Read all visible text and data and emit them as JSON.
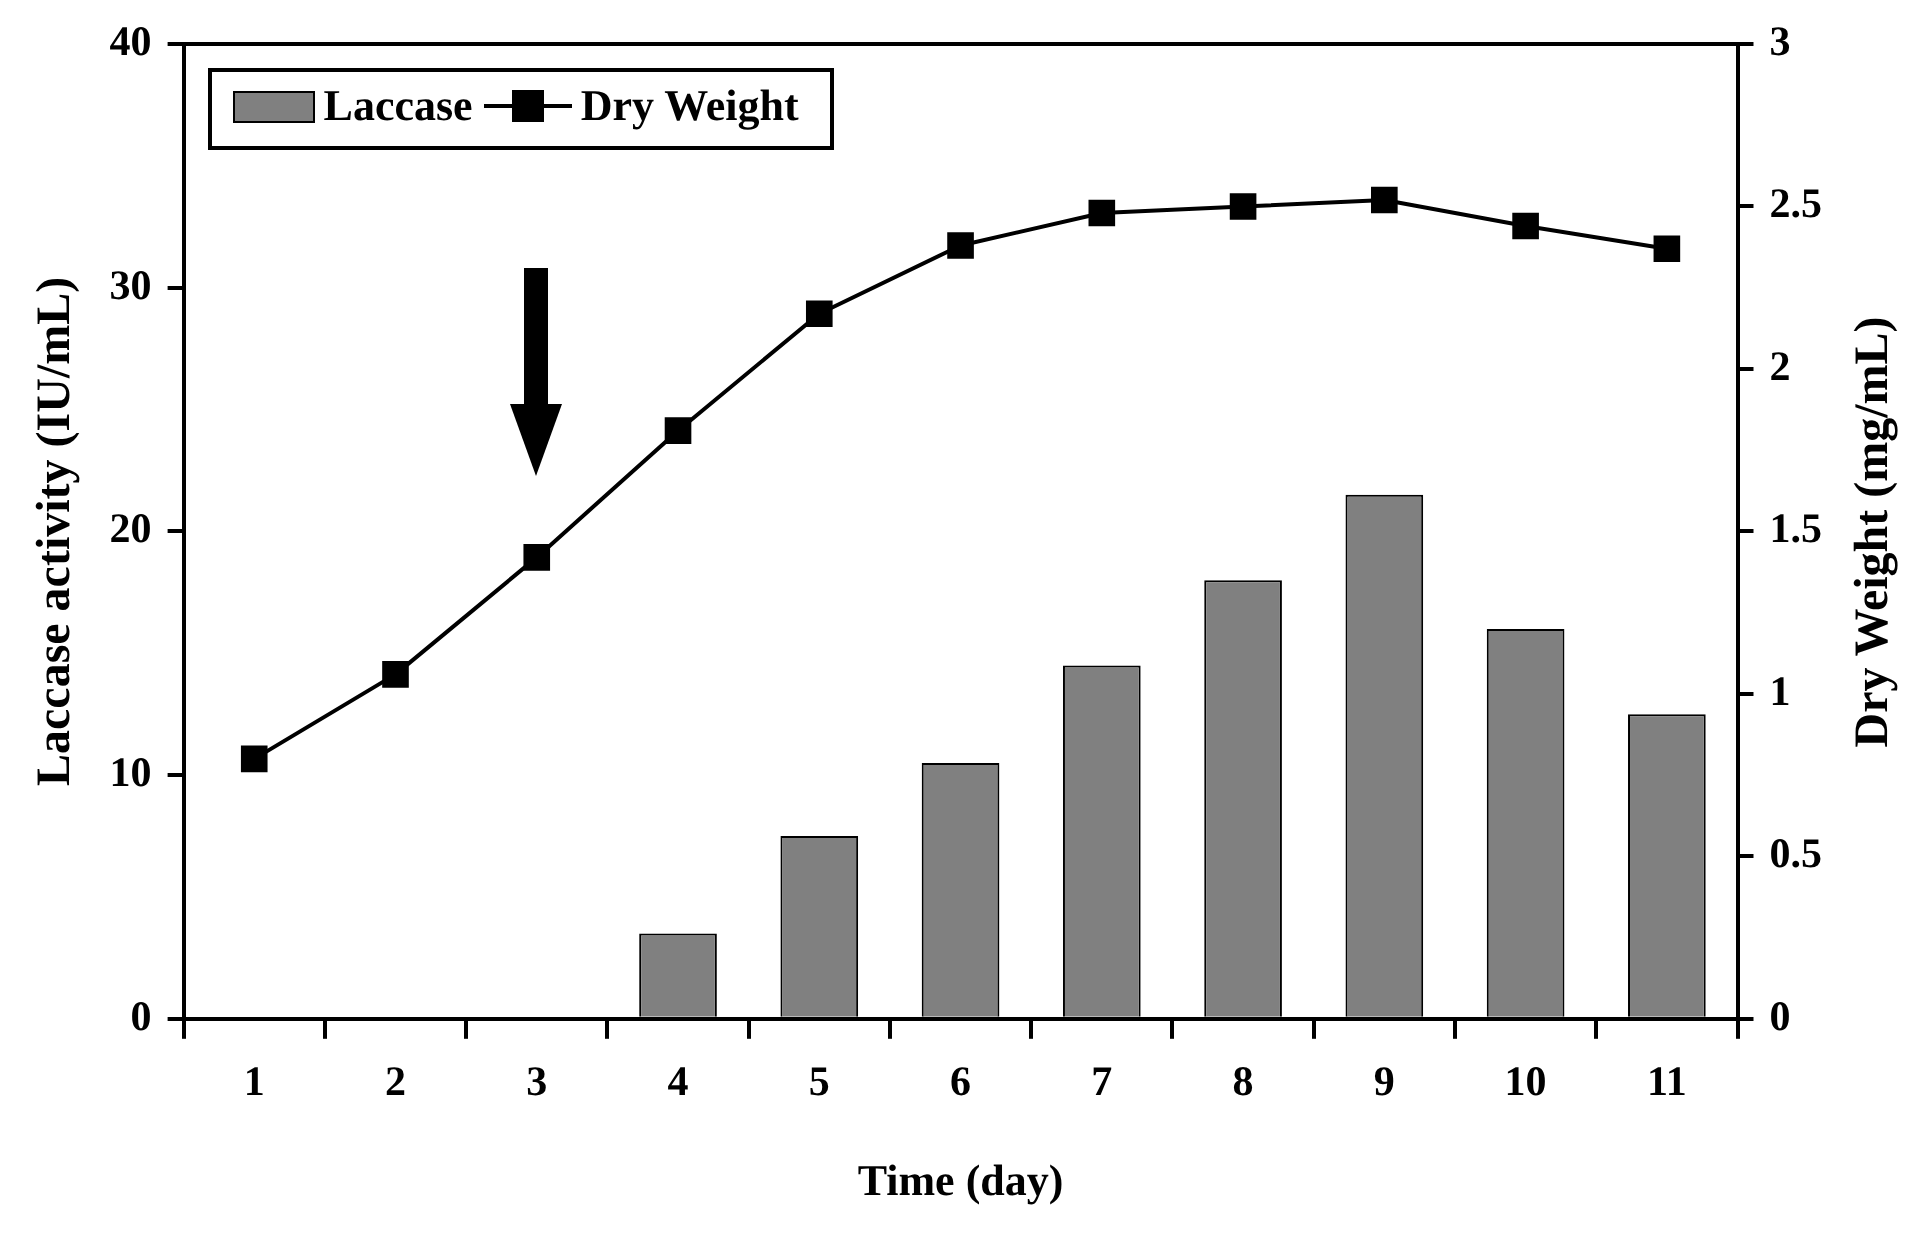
{
  "chart_data": {
    "type": "bar",
    "xlabel": "Time (day)",
    "ylabel": "Laccase activity (IU/mL)",
    "y2label": "Dry Weight (mg/mL)",
    "categories": [
      "1",
      "2",
      "3",
      "4",
      "5",
      "6",
      "7",
      "8",
      "9",
      "10",
      "11"
    ],
    "series": [
      {
        "name": "Laccase",
        "color": "#808080",
        "values": [
          0,
          0,
          0,
          3.5,
          7.5,
          10.5,
          14.5,
          18,
          21.5,
          16,
          12.5
        ]
      },
      {
        "name": "Dry Weight",
        "type": "line",
        "axis": "y2",
        "color": "#000000",
        "values": [
          0.8,
          1.06,
          1.42,
          1.81,
          2.17,
          2.38,
          2.48,
          2.5,
          2.52,
          2.44,
          2.37
        ]
      }
    ],
    "ylim": [
      0,
      40
    ],
    "yticks": [
      0,
      10,
      20,
      30,
      40
    ],
    "y2lim": [
      0,
      3
    ],
    "y2ticks": [
      0,
      0.5,
      1,
      1.5,
      2,
      2.5,
      3
    ],
    "grid": false,
    "legend": "top left",
    "marker": "square"
  }
}
